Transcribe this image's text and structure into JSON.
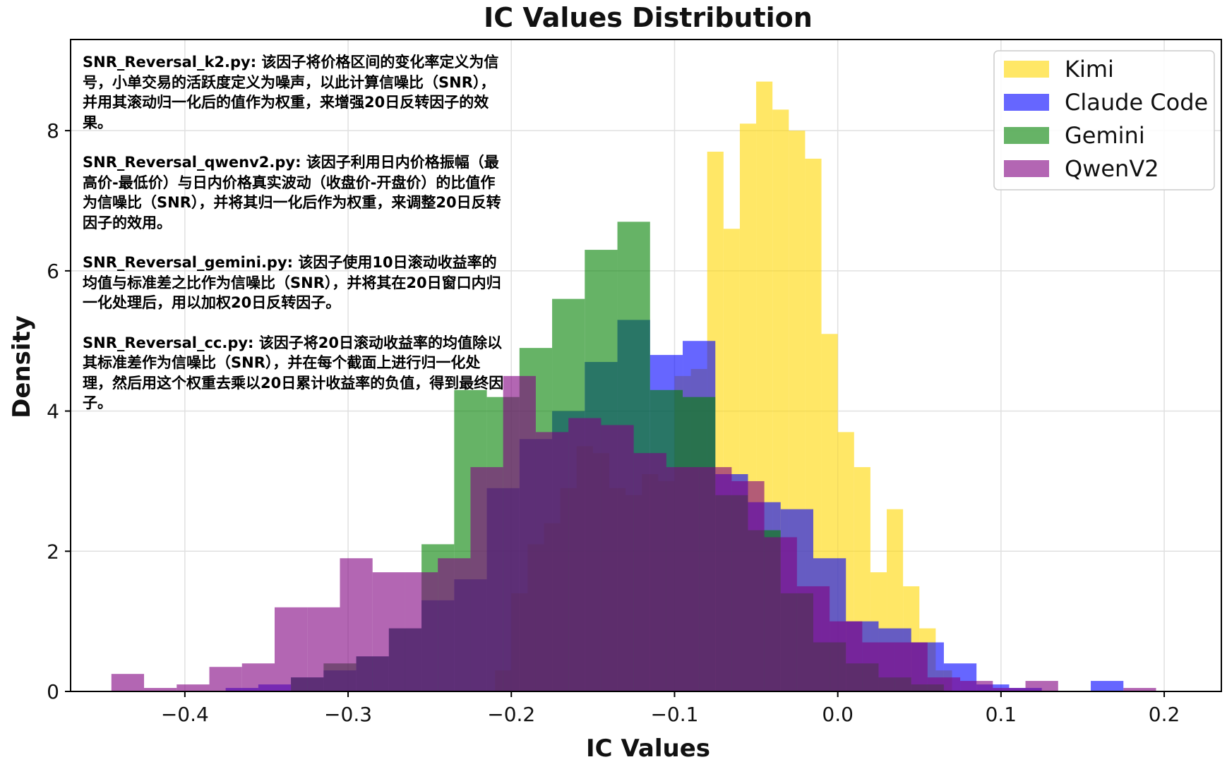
{
  "chart_data": {
    "type": "histogram",
    "title": "IC Values Distribution",
    "xlabel": "IC Values",
    "ylabel": "Density",
    "xlim": [
      -0.47,
      0.235
    ],
    "ylim": [
      0,
      9.3
    ],
    "xticks": [
      -0.4,
      -0.3,
      -0.2,
      -0.1,
      0.0,
      0.1,
      0.2
    ],
    "xtick_labels": [
      "−0.4",
      "−0.3",
      "−0.2",
      "−0.1",
      "0.0",
      "0.1",
      "0.2"
    ],
    "yticks": [
      0,
      2,
      4,
      6,
      8
    ],
    "ytick_labels": [
      "0",
      "2",
      "4",
      "6",
      "8"
    ],
    "grid": true,
    "legend_position": "top-right",
    "series": [
      {
        "name": "Kimi",
        "color": "#ffd700",
        "opacity": 0.6,
        "bins": [
          {
            "start": -0.21,
            "end": -0.2,
            "density": 0.3
          },
          {
            "start": -0.2,
            "end": -0.19,
            "density": 1.4
          },
          {
            "start": -0.19,
            "end": -0.18,
            "density": 2.1
          },
          {
            "start": -0.18,
            "end": -0.17,
            "density": 2.4
          },
          {
            "start": -0.17,
            "end": -0.16,
            "density": 2.9
          },
          {
            "start": -0.16,
            "end": -0.15,
            "density": 3.5
          },
          {
            "start": -0.15,
            "end": -0.14,
            "density": 3.4
          },
          {
            "start": -0.14,
            "end": -0.13,
            "density": 2.9
          },
          {
            "start": -0.13,
            "end": -0.12,
            "density": 2.8
          },
          {
            "start": -0.12,
            "end": -0.11,
            "density": 3.1
          },
          {
            "start": -0.11,
            "end": -0.1,
            "density": 3.0
          },
          {
            "start": -0.1,
            "end": -0.09,
            "density": 4.5
          },
          {
            "start": -0.09,
            "end": -0.08,
            "density": 4.6
          },
          {
            "start": -0.08,
            "end": -0.07,
            "density": 7.7
          },
          {
            "start": -0.07,
            "end": -0.06,
            "density": 6.6
          },
          {
            "start": -0.06,
            "end": -0.05,
            "density": 8.1
          },
          {
            "start": -0.05,
            "end": -0.04,
            "density": 8.7
          },
          {
            "start": -0.04,
            "end": -0.03,
            "density": 8.3
          },
          {
            "start": -0.03,
            "end": -0.02,
            "density": 8.0
          },
          {
            "start": -0.02,
            "end": -0.01,
            "density": 7.6
          },
          {
            "start": -0.01,
            "end": 0.0,
            "density": 5.1
          },
          {
            "start": 0.0,
            "end": 0.01,
            "density": 3.7
          },
          {
            "start": 0.01,
            "end": 0.02,
            "density": 3.2
          },
          {
            "start": 0.02,
            "end": 0.03,
            "density": 1.7
          },
          {
            "start": 0.03,
            "end": 0.04,
            "density": 2.6
          },
          {
            "start": 0.04,
            "end": 0.05,
            "density": 1.5
          },
          {
            "start": 0.05,
            "end": 0.06,
            "density": 0.9
          },
          {
            "start": 0.06,
            "end": 0.07,
            "density": 0.3
          }
        ]
      },
      {
        "name": "Claude Code",
        "color": "#0000ff",
        "opacity": 0.6,
        "bins": [
          {
            "start": -0.375,
            "end": -0.355,
            "density": 0.05
          },
          {
            "start": -0.355,
            "end": -0.335,
            "density": 0.1
          },
          {
            "start": -0.335,
            "end": -0.315,
            "density": 0.2
          },
          {
            "start": -0.315,
            "end": -0.295,
            "density": 0.3
          },
          {
            "start": -0.295,
            "end": -0.275,
            "density": 0.5
          },
          {
            "start": -0.275,
            "end": -0.255,
            "density": 0.9
          },
          {
            "start": -0.255,
            "end": -0.235,
            "density": 1.3
          },
          {
            "start": -0.235,
            "end": -0.215,
            "density": 1.6
          },
          {
            "start": -0.215,
            "end": -0.195,
            "density": 2.9
          },
          {
            "start": -0.195,
            "end": -0.175,
            "density": 3.6
          },
          {
            "start": -0.175,
            "end": -0.155,
            "density": 4.0
          },
          {
            "start": -0.155,
            "end": -0.135,
            "density": 4.7
          },
          {
            "start": -0.135,
            "end": -0.115,
            "density": 5.3
          },
          {
            "start": -0.115,
            "end": -0.095,
            "density": 4.8
          },
          {
            "start": -0.095,
            "end": -0.075,
            "density": 5.0
          },
          {
            "start": -0.075,
            "end": -0.055,
            "density": 3.1
          },
          {
            "start": -0.055,
            "end": -0.035,
            "density": 2.7
          },
          {
            "start": -0.035,
            "end": -0.015,
            "density": 2.6
          },
          {
            "start": -0.015,
            "end": 0.005,
            "density": 1.9
          },
          {
            "start": 0.005,
            "end": 0.025,
            "density": 1.0
          },
          {
            "start": 0.025,
            "end": 0.045,
            "density": 0.9
          },
          {
            "start": 0.045,
            "end": 0.065,
            "density": 0.7
          },
          {
            "start": 0.065,
            "end": 0.085,
            "density": 0.4
          },
          {
            "start": 0.085,
            "end": 0.105,
            "density": 0.1
          },
          {
            "start": 0.105,
            "end": 0.125,
            "density": 0.05
          },
          {
            "start": 0.155,
            "end": 0.175,
            "density": 0.15
          }
        ]
      },
      {
        "name": "Gemini",
        "color": "#008000",
        "opacity": 0.6,
        "bins": [
          {
            "start": -0.335,
            "end": -0.315,
            "density": 0.2
          },
          {
            "start": -0.315,
            "end": -0.295,
            "density": 0.4
          },
          {
            "start": -0.295,
            "end": -0.275,
            "density": 0.5
          },
          {
            "start": -0.275,
            "end": -0.255,
            "density": 0.9
          },
          {
            "start": -0.255,
            "end": -0.235,
            "density": 2.1
          },
          {
            "start": -0.235,
            "end": -0.215,
            "density": 4.3
          },
          {
            "start": -0.215,
            "end": -0.195,
            "density": 4.2
          },
          {
            "start": -0.195,
            "end": -0.175,
            "density": 4.9
          },
          {
            "start": -0.175,
            "end": -0.155,
            "density": 5.6
          },
          {
            "start": -0.155,
            "end": -0.135,
            "density": 6.3
          },
          {
            "start": -0.135,
            "end": -0.115,
            "density": 6.7
          },
          {
            "start": -0.115,
            "end": -0.095,
            "density": 4.3
          },
          {
            "start": -0.095,
            "end": -0.075,
            "density": 4.2
          },
          {
            "start": -0.075,
            "end": -0.055,
            "density": 2.8
          },
          {
            "start": -0.055,
            "end": -0.035,
            "density": 2.3
          },
          {
            "start": -0.035,
            "end": -0.015,
            "density": 1.4
          },
          {
            "start": -0.015,
            "end": 0.005,
            "density": 0.7
          },
          {
            "start": 0.005,
            "end": 0.025,
            "density": 0.4
          },
          {
            "start": 0.025,
            "end": 0.045,
            "density": 0.2
          },
          {
            "start": 0.045,
            "end": 0.065,
            "density": 0.1
          }
        ]
      },
      {
        "name": "QwenV2",
        "color": "#800080",
        "opacity": 0.6,
        "bins": [
          {
            "start": -0.445,
            "end": -0.425,
            "density": 0.25
          },
          {
            "start": -0.425,
            "end": -0.405,
            "density": 0.05
          },
          {
            "start": -0.405,
            "end": -0.385,
            "density": 0.1
          },
          {
            "start": -0.385,
            "end": -0.365,
            "density": 0.35
          },
          {
            "start": -0.365,
            "end": -0.345,
            "density": 0.4
          },
          {
            "start": -0.345,
            "end": -0.325,
            "density": 1.2
          },
          {
            "start": -0.325,
            "end": -0.305,
            "density": 1.2
          },
          {
            "start": -0.305,
            "end": -0.285,
            "density": 1.9
          },
          {
            "start": -0.285,
            "end": -0.265,
            "density": 1.7
          },
          {
            "start": -0.265,
            "end": -0.245,
            "density": 1.7
          },
          {
            "start": -0.245,
            "end": -0.225,
            "density": 1.9
          },
          {
            "start": -0.225,
            "end": -0.205,
            "density": 3.2
          },
          {
            "start": -0.205,
            "end": -0.185,
            "density": 4.5
          },
          {
            "start": -0.185,
            "end": -0.165,
            "density": 3.7
          },
          {
            "start": -0.165,
            "end": -0.145,
            "density": 3.9
          },
          {
            "start": -0.145,
            "end": -0.125,
            "density": 3.8
          },
          {
            "start": -0.125,
            "end": -0.105,
            "density": 3.4
          },
          {
            "start": -0.105,
            "end": -0.085,
            "density": 3.2
          },
          {
            "start": -0.085,
            "end": -0.065,
            "density": 3.2
          },
          {
            "start": -0.065,
            "end": -0.045,
            "density": 3.0
          },
          {
            "start": -0.045,
            "end": -0.025,
            "density": 2.2
          },
          {
            "start": -0.025,
            "end": -0.005,
            "density": 1.5
          },
          {
            "start": -0.005,
            "end": 0.015,
            "density": 1.0
          },
          {
            "start": 0.015,
            "end": 0.035,
            "density": 0.7
          },
          {
            "start": 0.035,
            "end": 0.055,
            "density": 0.7
          },
          {
            "start": 0.055,
            "end": 0.075,
            "density": 0.2
          },
          {
            "start": 0.075,
            "end": 0.095,
            "density": 0.15
          },
          {
            "start": 0.095,
            "end": 0.115,
            "density": 0.05
          },
          {
            "start": 0.115,
            "end": 0.135,
            "density": 0.15
          },
          {
            "start": 0.175,
            "end": 0.195,
            "density": 0.05
          }
        ]
      }
    ]
  },
  "annotations": [
    "SNR_Reversal_k2.py: 该因子将价格区间的变化率定义为信号，小单交易的活跃度定义为噪声，以此计算信噪比（SNR），并用其滚动归一化后的值作为权重，来增强20日反转因子的效果。",
    "SNR_Reversal_qwenv2.py: 该因子利用日内价格振幅（最高价-最低价）与日内价格真实波动（收盘价-开盘价）的比值作为信噪比（SNR），并将其归一化后作为权重，来调整20日反转因子的效用。",
    "SNR_Reversal_gemini.py: 该因子使用10日滚动收益率的均值与标准差之比作为信噪比（SNR），并将其在20日窗口内归一化处理后，用以加权20日反转因子。",
    "SNR_Reversal_cc.py: 该因子将20日滚动收益率的均值除以其标准差作为信噪比（SNR），并在每个截面上进行归一化处理，然后用这个权重去乘以20日累计收益率的负值，得到最终因子。"
  ]
}
